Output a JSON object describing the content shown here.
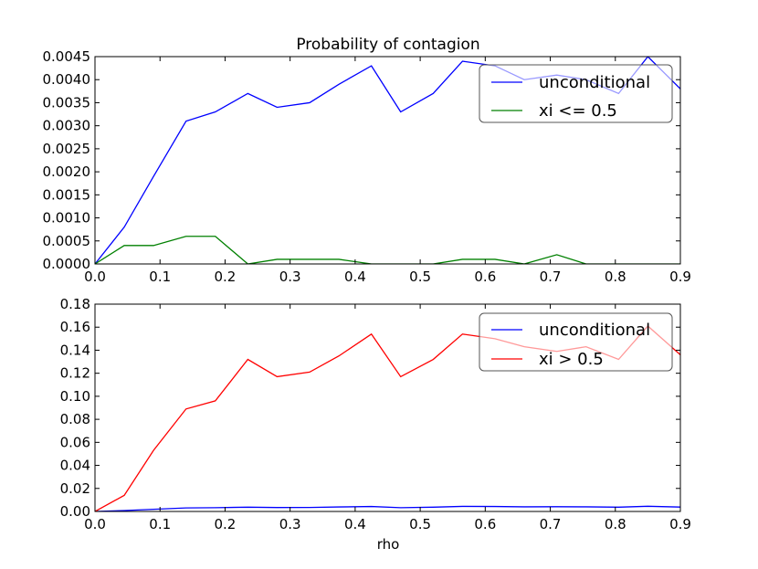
{
  "chart_data": [
    {
      "type": "line",
      "title": "Probability of contagion",
      "xlabel": "",
      "ylabel": "",
      "xlim": [
        0.0,
        0.9
      ],
      "ylim": [
        0.0,
        0.0045
      ],
      "x_ticks": [
        "0.0",
        "0.1",
        "0.2",
        "0.3",
        "0.4",
        "0.5",
        "0.6",
        "0.7",
        "0.8",
        "0.9"
      ],
      "y_ticks": [
        "0.0000",
        "0.0005",
        "0.0010",
        "0.0015",
        "0.0020",
        "0.0025",
        "0.0030",
        "0.0035",
        "0.0040",
        "0.0045"
      ],
      "x": [
        0.0,
        0.045,
        0.09,
        0.14,
        0.185,
        0.235,
        0.28,
        0.33,
        0.375,
        0.425,
        0.47,
        0.52,
        0.565,
        0.615,
        0.66,
        0.71,
        0.755,
        0.805,
        0.85,
        0.9
      ],
      "series": [
        {
          "name": "unconditional",
          "color": "#0000ff",
          "values": [
            0.0,
            0.0008,
            0.0019,
            0.0031,
            0.0033,
            0.0037,
            0.0034,
            0.0035,
            0.0039,
            0.0043,
            0.0033,
            0.0037,
            0.0044,
            0.0043,
            0.004,
            0.0041,
            0.004,
            0.0037,
            0.0045,
            0.0038
          ]
        },
        {
          "name": "xi <= 0.5",
          "color": "#008000",
          "values": [
            0.0,
            0.0004,
            0.0004,
            0.0006,
            0.0006,
            0.0,
            0.0001,
            0.0001,
            0.0001,
            0.0,
            0.0,
            0.0,
            0.0001,
            0.0001,
            0.0,
            0.0002,
            0.0,
            0.0,
            0.0,
            0.0
          ]
        }
      ],
      "legend_position": "top-right",
      "grid": false
    },
    {
      "type": "line",
      "title": "",
      "xlabel": "rho",
      "ylabel": "",
      "xlim": [
        0.0,
        0.9
      ],
      "ylim": [
        0.0,
        0.18
      ],
      "x_ticks": [
        "0.0",
        "0.1",
        "0.2",
        "0.3",
        "0.4",
        "0.5",
        "0.6",
        "0.7",
        "0.8",
        "0.9"
      ],
      "y_ticks": [
        "0.00",
        "0.02",
        "0.04",
        "0.06",
        "0.08",
        "0.10",
        "0.12",
        "0.14",
        "0.16",
        "0.18"
      ],
      "x": [
        0.0,
        0.045,
        0.09,
        0.14,
        0.185,
        0.235,
        0.28,
        0.33,
        0.375,
        0.425,
        0.47,
        0.52,
        0.565,
        0.615,
        0.66,
        0.71,
        0.755,
        0.805,
        0.85,
        0.9
      ],
      "series": [
        {
          "name": "unconditional",
          "color": "#0000ff",
          "values": [
            0.0,
            0.0008,
            0.0019,
            0.0031,
            0.0033,
            0.0037,
            0.0034,
            0.0035,
            0.0039,
            0.0043,
            0.0033,
            0.0037,
            0.0044,
            0.0043,
            0.004,
            0.0041,
            0.004,
            0.0037,
            0.0045,
            0.0038
          ]
        },
        {
          "name": "xi > 0.5",
          "color": "#ff0000",
          "values": [
            0.0,
            0.014,
            0.053,
            0.089,
            0.096,
            0.132,
            0.117,
            0.121,
            0.135,
            0.154,
            0.117,
            0.132,
            0.154,
            0.15,
            0.143,
            0.139,
            0.143,
            0.132,
            0.161,
            0.136
          ]
        }
      ],
      "legend_position": "top-right",
      "grid": false
    }
  ]
}
